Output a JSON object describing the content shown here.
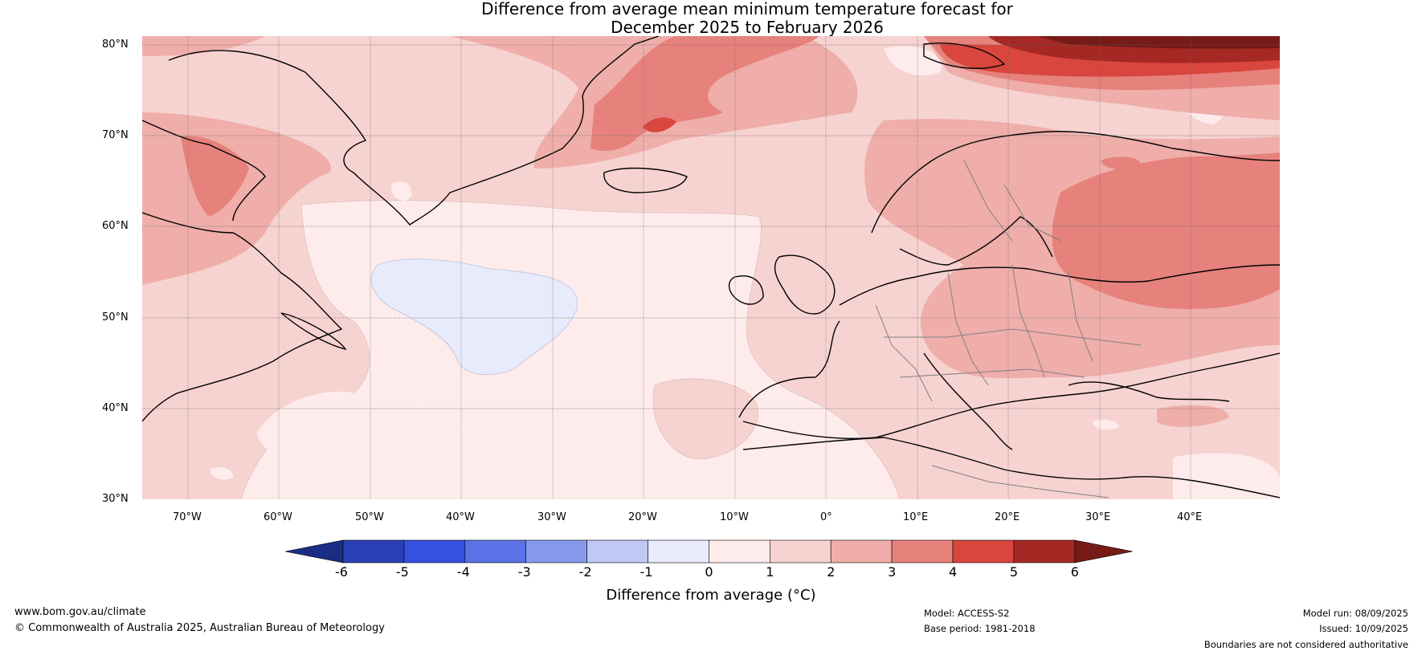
{
  "title": {
    "line1": "Difference from average mean minimum temperature forecast for",
    "line2": "December 2025 to February 2026"
  },
  "lat_labels": [
    "80°N",
    "70°N",
    "60°N",
    "50°N",
    "40°N",
    "30°N"
  ],
  "lon_labels": [
    "70°W",
    "60°W",
    "50°W",
    "40°W",
    "30°W",
    "20°W",
    "10°W",
    "0°",
    "10°E",
    "20°E",
    "30°E",
    "40°E"
  ],
  "colorbar": {
    "title": "Difference from average (°C)",
    "ticks": [
      "-6",
      "-5",
      "-4",
      "-3",
      "-2",
      "-1",
      "0",
      "1",
      "2",
      "3",
      "4",
      "5",
      "6"
    ],
    "colors": [
      "#1b2c84",
      "#2b40b6",
      "#3451e0",
      "#5a72e6",
      "#8799ec",
      "#c0c8f3",
      "#e8ebfb",
      "#fdeceb",
      "#f6d3d1",
      "#efaeaa",
      "#e6817c",
      "#d8463e",
      "#a52824",
      "#761b17"
    ]
  },
  "footer": {
    "website": "www.bom.gov.au/climate",
    "copyright": "© Commonwealth of Australia 2025, Australian Bureau of Meteorology",
    "model": "Model: ACCESS-S2",
    "base_period": "Base period: 1981-2018",
    "model_run": "Model run: 08/09/2025",
    "issued": "Issued: 10/09/2025",
    "disclaimer": "Boundaries are not considered authoritative"
  }
}
